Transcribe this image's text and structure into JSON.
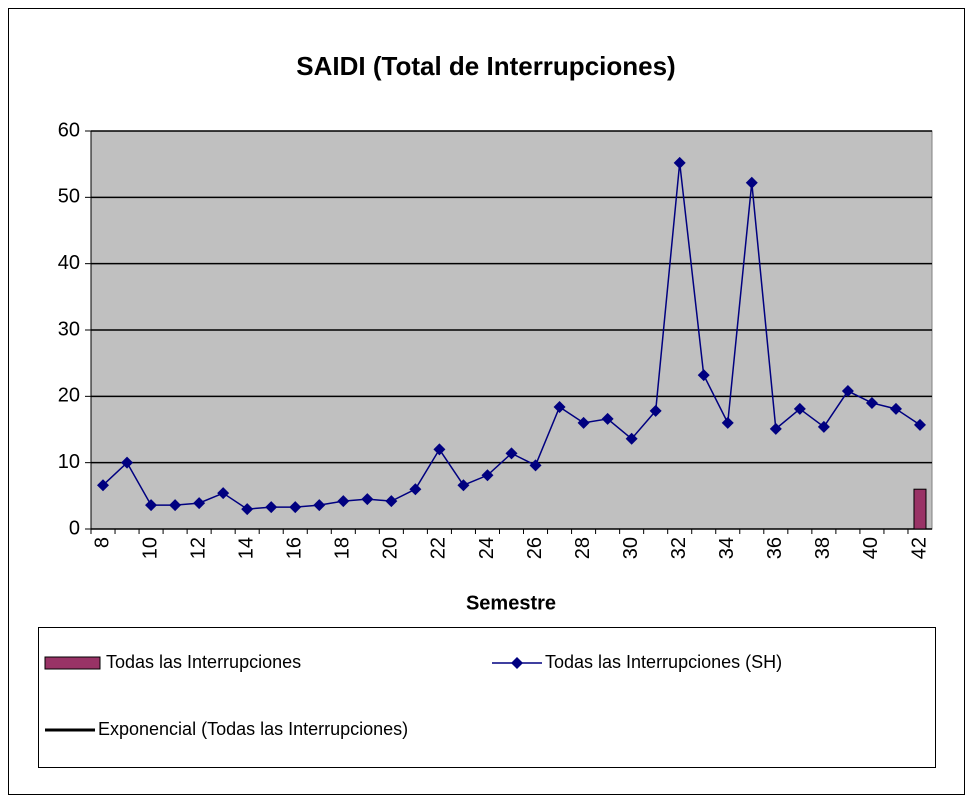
{
  "chart_data": {
    "type": "line",
    "title": "SAIDI (Total de Interrupciones)",
    "x_label": "Semestre",
    "categories": [
      "8",
      null,
      "10",
      null,
      "12",
      null,
      "14",
      null,
      "16",
      null,
      "18",
      null,
      "20",
      null,
      "22",
      null,
      "24",
      null,
      "26",
      null,
      "28",
      null,
      "30",
      null,
      "32",
      null,
      "34",
      null,
      "36",
      null,
      "38",
      null,
      "40",
      null,
      "42"
    ],
    "series": [
      {
        "name": "Todas las Interrupciones",
        "type": "bar",
        "color": "#993366",
        "values": [
          null,
          null,
          null,
          null,
          null,
          null,
          null,
          null,
          null,
          null,
          null,
          null,
          null,
          null,
          null,
          null,
          null,
          null,
          null,
          null,
          null,
          null,
          null,
          null,
          null,
          null,
          null,
          null,
          null,
          null,
          null,
          null,
          null,
          null,
          6
        ]
      },
      {
        "name": "Todas las Interrupciones (SH)",
        "type": "line",
        "color": "#000080",
        "values": [
          6.6,
          10,
          3.6,
          3.6,
          3.9,
          5.4,
          3.0,
          3.3,
          3.3,
          3.6,
          4.2,
          4.5,
          4.2,
          6,
          12,
          6.6,
          8.1,
          11.4,
          9.6,
          18.4,
          16,
          16.6,
          13.6,
          17.8,
          55.2,
          23.2,
          16,
          52.2,
          15.1,
          18.1,
          15.4,
          20.8,
          19,
          18.1,
          15.7
        ]
      },
      {
        "name": "Exponencial (Todas las Interrupciones)",
        "type": "trend",
        "color": "#000000",
        "values": [
          null,
          null,
          null,
          null,
          null,
          null,
          null,
          null,
          null,
          null,
          null,
          null,
          null,
          null,
          null,
          null,
          null,
          null,
          null,
          null,
          null,
          null,
          null,
          null,
          null,
          null,
          null,
          null,
          null,
          null,
          null,
          null,
          null,
          null,
          null
        ]
      }
    ],
    "ylim": [
      0,
      60
    ],
    "yticks": [
      0,
      10,
      20,
      30,
      40,
      50,
      60
    ],
    "grid": true
  }
}
